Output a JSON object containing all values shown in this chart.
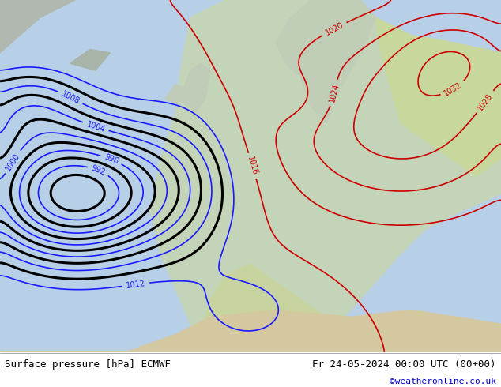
{
  "title_left": "Surface pressure [hPa] ECMWF",
  "title_right": "Fr 24-05-2024 00:00 UTC (00+00)",
  "copyright": "©weatheronline.co.uk",
  "bg_color": "#d0e8f0",
  "land_color_west": "#c8d8c0",
  "land_color_east": "#c8d8a8",
  "sea_color": "#b0cce0",
  "footer_bg": "#ffffff",
  "contour_interval": 4,
  "pressure_min": 980,
  "pressure_max": 1036,
  "figsize": [
    6.34,
    4.9
  ],
  "dpi": 100
}
